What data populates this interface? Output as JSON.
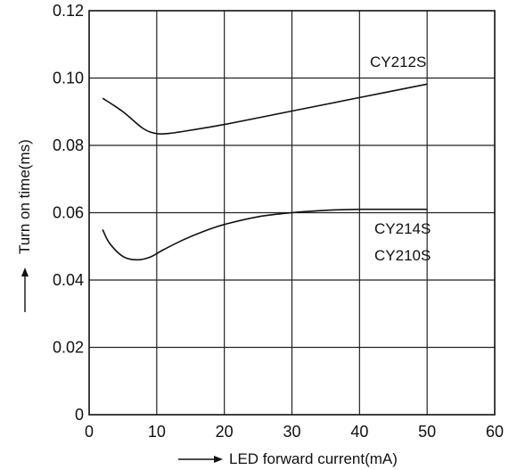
{
  "chart_data": {
    "type": "line",
    "title": "",
    "xlabel": "LED forward current(mA)",
    "ylabel": "Turn on time(ms)",
    "xlim": [
      0,
      60
    ],
    "ylim": [
      0,
      0.12
    ],
    "x_ticks": [
      "0",
      "10",
      "20",
      "30",
      "40",
      "50",
      "60"
    ],
    "y_ticks": [
      "0",
      "0.02",
      "0.04",
      "0.06",
      "0.08",
      "0.10",
      "0.12"
    ],
    "grid": true,
    "series": [
      {
        "name": "CY212S",
        "x": [
          2,
          5,
          8,
          10,
          12,
          15,
          20,
          30,
          40,
          50
        ],
        "y": [
          0.094,
          0.09,
          0.085,
          0.0835,
          0.0836,
          0.0845,
          0.0862,
          0.0902,
          0.0942,
          0.0982
        ]
      },
      {
        "name": "CY214S / CY210S",
        "x": [
          2,
          3,
          5,
          7,
          9,
          11,
          14,
          17,
          20,
          25,
          30,
          35,
          40,
          45,
          50
        ],
        "y": [
          0.055,
          0.051,
          0.047,
          0.046,
          0.0468,
          0.049,
          0.052,
          0.0545,
          0.0565,
          0.0588,
          0.06,
          0.0607,
          0.061,
          0.061,
          0.061
        ]
      }
    ],
    "annotations": [
      "CY212S",
      "CY214S",
      "CY210S"
    ]
  }
}
